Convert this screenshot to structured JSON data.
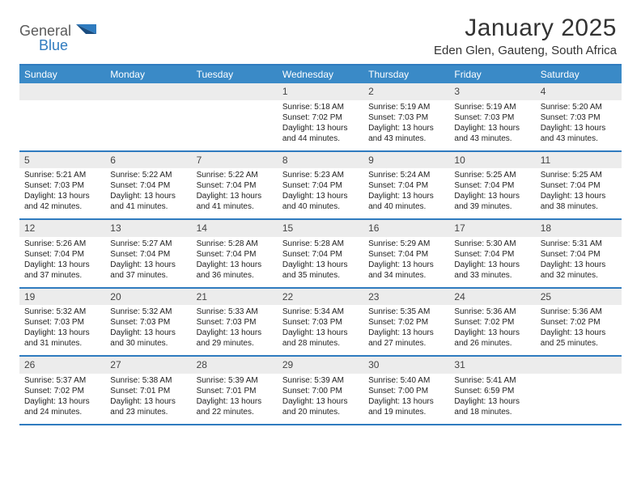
{
  "brand": {
    "text_general": "General",
    "text_blue": "Blue"
  },
  "colors": {
    "header_bar": "#3a8ac7",
    "rule": "#2f7bbf",
    "daynum_bg": "#ececec",
    "text": "#333333",
    "logo_dark": "#1a4d80",
    "logo_blue": "#2f7bbf"
  },
  "title": "January 2025",
  "location": "Eden Glen, Gauteng, South Africa",
  "dow": [
    "Sunday",
    "Monday",
    "Tuesday",
    "Wednesday",
    "Thursday",
    "Friday",
    "Saturday"
  ],
  "weeks": [
    [
      null,
      null,
      null,
      {
        "n": "1",
        "sunrise": "5:18 AM",
        "sunset": "7:02 PM",
        "dl1": "Daylight: 13 hours",
        "dl2": "and 44 minutes."
      },
      {
        "n": "2",
        "sunrise": "5:19 AM",
        "sunset": "7:03 PM",
        "dl1": "Daylight: 13 hours",
        "dl2": "and 43 minutes."
      },
      {
        "n": "3",
        "sunrise": "5:19 AM",
        "sunset": "7:03 PM",
        "dl1": "Daylight: 13 hours",
        "dl2": "and 43 minutes."
      },
      {
        "n": "4",
        "sunrise": "5:20 AM",
        "sunset": "7:03 PM",
        "dl1": "Daylight: 13 hours",
        "dl2": "and 43 minutes."
      }
    ],
    [
      {
        "n": "5",
        "sunrise": "5:21 AM",
        "sunset": "7:03 PM",
        "dl1": "Daylight: 13 hours",
        "dl2": "and 42 minutes."
      },
      {
        "n": "6",
        "sunrise": "5:22 AM",
        "sunset": "7:04 PM",
        "dl1": "Daylight: 13 hours",
        "dl2": "and 41 minutes."
      },
      {
        "n": "7",
        "sunrise": "5:22 AM",
        "sunset": "7:04 PM",
        "dl1": "Daylight: 13 hours",
        "dl2": "and 41 minutes."
      },
      {
        "n": "8",
        "sunrise": "5:23 AM",
        "sunset": "7:04 PM",
        "dl1": "Daylight: 13 hours",
        "dl2": "and 40 minutes."
      },
      {
        "n": "9",
        "sunrise": "5:24 AM",
        "sunset": "7:04 PM",
        "dl1": "Daylight: 13 hours",
        "dl2": "and 40 minutes."
      },
      {
        "n": "10",
        "sunrise": "5:25 AM",
        "sunset": "7:04 PM",
        "dl1": "Daylight: 13 hours",
        "dl2": "and 39 minutes."
      },
      {
        "n": "11",
        "sunrise": "5:25 AM",
        "sunset": "7:04 PM",
        "dl1": "Daylight: 13 hours",
        "dl2": "and 38 minutes."
      }
    ],
    [
      {
        "n": "12",
        "sunrise": "5:26 AM",
        "sunset": "7:04 PM",
        "dl1": "Daylight: 13 hours",
        "dl2": "and 37 minutes."
      },
      {
        "n": "13",
        "sunrise": "5:27 AM",
        "sunset": "7:04 PM",
        "dl1": "Daylight: 13 hours",
        "dl2": "and 37 minutes."
      },
      {
        "n": "14",
        "sunrise": "5:28 AM",
        "sunset": "7:04 PM",
        "dl1": "Daylight: 13 hours",
        "dl2": "and 36 minutes."
      },
      {
        "n": "15",
        "sunrise": "5:28 AM",
        "sunset": "7:04 PM",
        "dl1": "Daylight: 13 hours",
        "dl2": "and 35 minutes."
      },
      {
        "n": "16",
        "sunrise": "5:29 AM",
        "sunset": "7:04 PM",
        "dl1": "Daylight: 13 hours",
        "dl2": "and 34 minutes."
      },
      {
        "n": "17",
        "sunrise": "5:30 AM",
        "sunset": "7:04 PM",
        "dl1": "Daylight: 13 hours",
        "dl2": "and 33 minutes."
      },
      {
        "n": "18",
        "sunrise": "5:31 AM",
        "sunset": "7:04 PM",
        "dl1": "Daylight: 13 hours",
        "dl2": "and 32 minutes."
      }
    ],
    [
      {
        "n": "19",
        "sunrise": "5:32 AM",
        "sunset": "7:03 PM",
        "dl1": "Daylight: 13 hours",
        "dl2": "and 31 minutes."
      },
      {
        "n": "20",
        "sunrise": "5:32 AM",
        "sunset": "7:03 PM",
        "dl1": "Daylight: 13 hours",
        "dl2": "and 30 minutes."
      },
      {
        "n": "21",
        "sunrise": "5:33 AM",
        "sunset": "7:03 PM",
        "dl1": "Daylight: 13 hours",
        "dl2": "and 29 minutes."
      },
      {
        "n": "22",
        "sunrise": "5:34 AM",
        "sunset": "7:03 PM",
        "dl1": "Daylight: 13 hours",
        "dl2": "and 28 minutes."
      },
      {
        "n": "23",
        "sunrise": "5:35 AM",
        "sunset": "7:02 PM",
        "dl1": "Daylight: 13 hours",
        "dl2": "and 27 minutes."
      },
      {
        "n": "24",
        "sunrise": "5:36 AM",
        "sunset": "7:02 PM",
        "dl1": "Daylight: 13 hours",
        "dl2": "and 26 minutes."
      },
      {
        "n": "25",
        "sunrise": "5:36 AM",
        "sunset": "7:02 PM",
        "dl1": "Daylight: 13 hours",
        "dl2": "and 25 minutes."
      }
    ],
    [
      {
        "n": "26",
        "sunrise": "5:37 AM",
        "sunset": "7:02 PM",
        "dl1": "Daylight: 13 hours",
        "dl2": "and 24 minutes."
      },
      {
        "n": "27",
        "sunrise": "5:38 AM",
        "sunset": "7:01 PM",
        "dl1": "Daylight: 13 hours",
        "dl2": "and 23 minutes."
      },
      {
        "n": "28",
        "sunrise": "5:39 AM",
        "sunset": "7:01 PM",
        "dl1": "Daylight: 13 hours",
        "dl2": "and 22 minutes."
      },
      {
        "n": "29",
        "sunrise": "5:39 AM",
        "sunset": "7:00 PM",
        "dl1": "Daylight: 13 hours",
        "dl2": "and 20 minutes."
      },
      {
        "n": "30",
        "sunrise": "5:40 AM",
        "sunset": "7:00 PM",
        "dl1": "Daylight: 13 hours",
        "dl2": "and 19 minutes."
      },
      {
        "n": "31",
        "sunrise": "5:41 AM",
        "sunset": "6:59 PM",
        "dl1": "Daylight: 13 hours",
        "dl2": "and 18 minutes."
      },
      null
    ]
  ],
  "labels": {
    "sunrise": "Sunrise: ",
    "sunset": "Sunset: "
  }
}
